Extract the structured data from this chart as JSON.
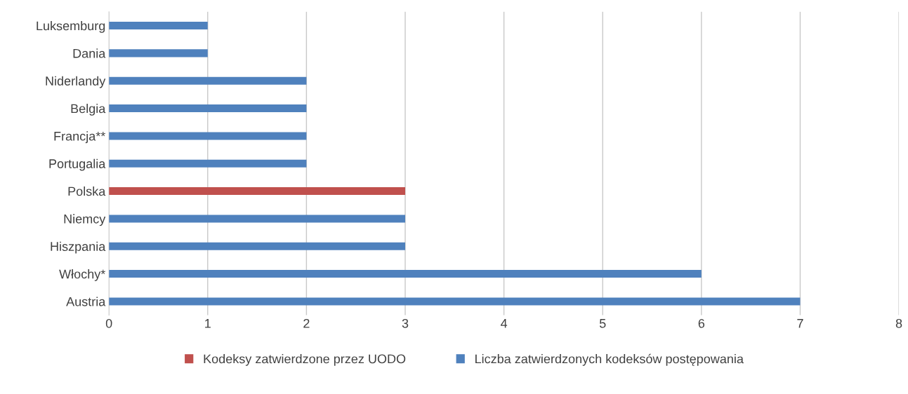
{
  "chart_data": {
    "type": "bar",
    "orientation": "horizontal",
    "categories": [
      "Luksemburg",
      "Dania",
      "Niderlandy",
      "Belgia",
      "Francja**",
      "Portugalia",
      "Polska",
      "Niemcy",
      "Hiszpania",
      "Włochy*",
      "Austria"
    ],
    "series": [
      {
        "name": "Kodeksy zatwierdzone przez UODO",
        "color": "#c0504d",
        "values": [
          null,
          null,
          null,
          null,
          null,
          null,
          3,
          null,
          null,
          null,
          null
        ]
      },
      {
        "name": "Liczba zatwierdzonych kodeksów postępowania",
        "color": "#4f81bd",
        "values": [
          1,
          1,
          2,
          2,
          2,
          2,
          null,
          3,
          3,
          6,
          7
        ]
      }
    ],
    "xlim": [
      0,
      8
    ],
    "xticks": [
      0,
      1,
      2,
      3,
      4,
      5,
      6,
      7,
      8
    ],
    "grid": "x",
    "legend": "bottom"
  }
}
